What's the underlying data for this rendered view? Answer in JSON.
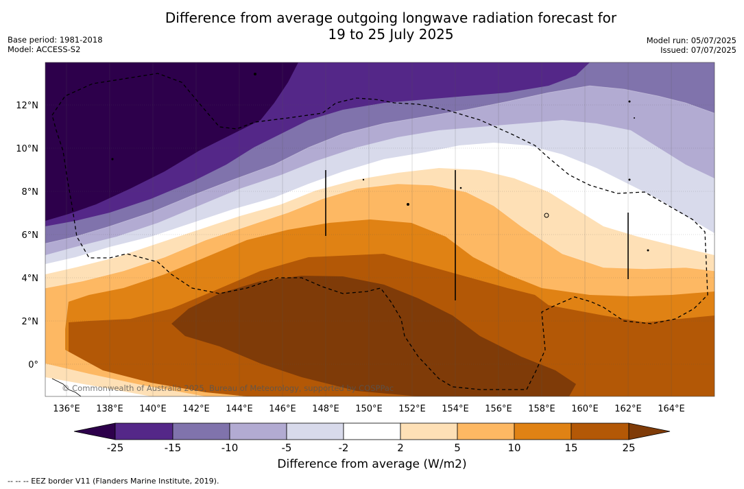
{
  "header": {
    "title_line1": "Difference from average outgoing longwave radiation forecast for",
    "title_line2": "19 to 25 July 2025",
    "base_period": "Base period: 1981-2018",
    "model": "Model: ACCESS-S2",
    "model_run": "Model run: 05/07/2025",
    "issued": "Issued: 07/07/2025"
  },
  "map": {
    "lat_labels": [
      "12°N",
      "10°N",
      "8°N",
      "6°N",
      "4°N",
      "2°N",
      "0°"
    ],
    "lon_labels": [
      "136°E",
      "138°E",
      "140°E",
      "142°E",
      "144°E",
      "146°E",
      "148°E",
      "150°E",
      "152°E",
      "154°E",
      "156°E",
      "158°E",
      "160°E",
      "162°E",
      "164°E"
    ],
    "watermark": "© Commonwealth of Australia 2025, Bureau of Meteorology, supported by COSPPac"
  },
  "colorbar": {
    "labels": [
      "-25",
      "-15",
      "-10",
      "-5",
      "-2",
      "2",
      "5",
      "10",
      "15",
      "25"
    ],
    "colors": [
      "#2d004b",
      "#542788",
      "#8073ac",
      "#b2abd2",
      "#d8daeb",
      "#ffffff",
      "#fee0b6",
      "#fdb863",
      "#e08214",
      "#b35806",
      "#7f3b08"
    ],
    "title": "Difference from average (W/m2)"
  },
  "footer": {
    "legend": "--  --  -- EEZ border V11 (Flanders Marine Institute, 2019)."
  }
}
